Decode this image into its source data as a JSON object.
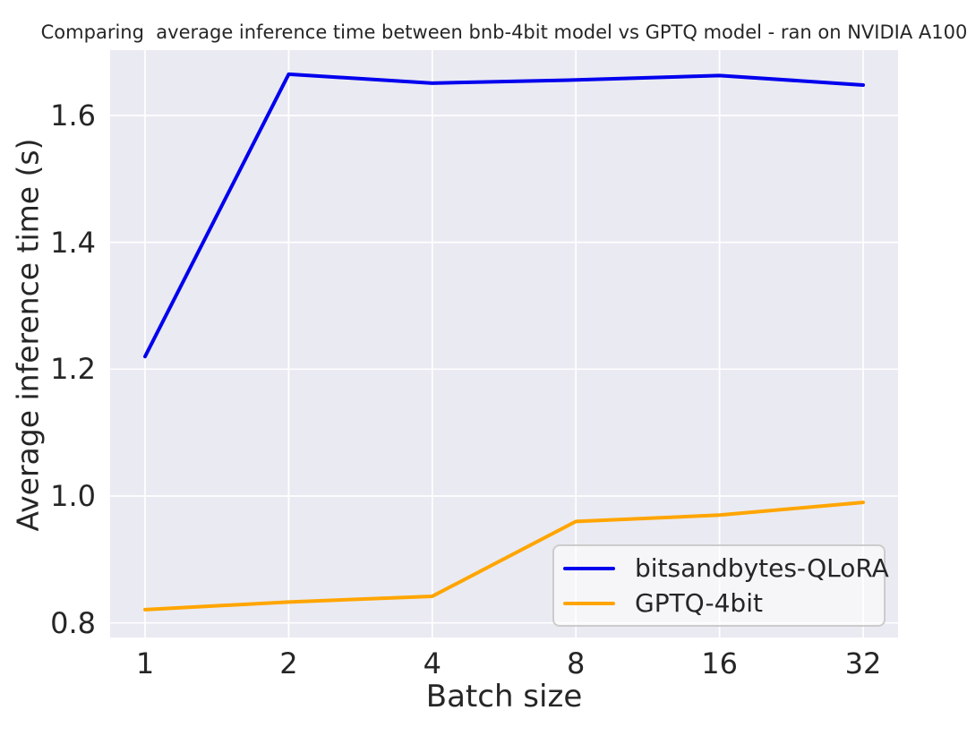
{
  "title": "Comparing  average inference time between bnb-4bit model vs GPTQ model - ran on NVIDIA A100",
  "chart_data": {
    "type": "line",
    "title": "Comparing  average inference time between bnb-4bit model vs GPTQ model - ran on NVIDIA A100",
    "xlabel": "Batch size",
    "ylabel": "Average inference time (s)",
    "categories": [
      "1",
      "2",
      "4",
      "8",
      "16",
      "32"
    ],
    "x_values": [
      1,
      2,
      4,
      8,
      16,
      32
    ],
    "series": [
      {
        "name": "bitsandbytes-QLoRA",
        "color": "#0000ee",
        "values": [
          1.22,
          1.665,
          1.651,
          1.656,
          1.663,
          1.648
        ]
      },
      {
        "name": "GPTQ-4bit",
        "color": "#ffa500",
        "values": [
          0.821,
          0.833,
          0.842,
          0.96,
          0.97,
          0.99
        ]
      }
    ],
    "yticks": [
      0.8,
      1.0,
      1.2,
      1.4,
      1.6
    ],
    "ytick_labels": [
      "0.8",
      "1.0",
      "1.2",
      "1.4",
      "1.6"
    ],
    "ylim": [
      0.777,
      1.703
    ],
    "grid": true,
    "grid_color": "#ffffff",
    "plot_bg": "#eaeaf2",
    "legend_position": "lower right",
    "line_width": 4
  }
}
